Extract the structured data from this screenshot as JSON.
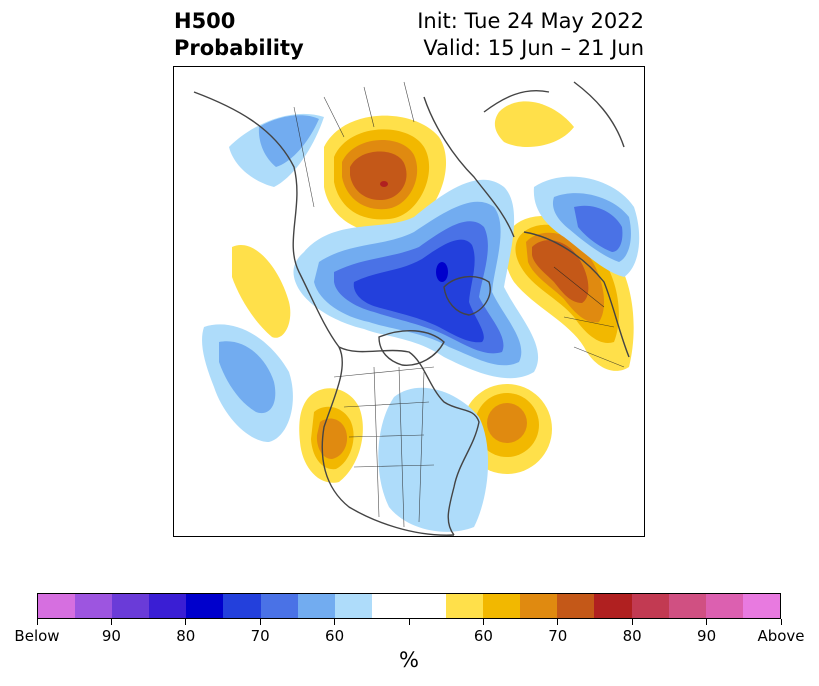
{
  "title": {
    "left_line1": "H500",
    "left_line2": "Probability",
    "right_line1": "Init: Tue 24 May 2022",
    "right_line2": "Valid: 15 Jun – 21 Jun"
  },
  "colorbar": {
    "colors": [
      "#d66fe0",
      "#9d55e0",
      "#6a3bd8",
      "#3a1ed4",
      "#0000cc",
      "#2340dc",
      "#4a72e6",
      "#72acf0",
      "#aedcfa",
      "#ffffff",
      "#ffffff",
      "#ffe04a",
      "#f2b800",
      "#e08a10",
      "#c45818",
      "#b02020",
      "#c23a52",
      "#d05082",
      "#dc60b0",
      "#e87ae0"
    ],
    "tick_labels": [
      "Below",
      "90",
      "80",
      "70",
      "60",
      "",
      "60",
      "70",
      "80",
      "90",
      "Above"
    ],
    "unit_label": "%"
  },
  "map": {
    "region": "North America / Northern Hemisphere polar view",
    "anomalies": [
      {
        "sign": "above",
        "level": "70",
        "area": "Alaska / Bering"
      },
      {
        "sign": "above",
        "level": "70",
        "area": "Scandinavia / NW Russia"
      },
      {
        "sign": "above",
        "level": "65",
        "area": "North Atlantic"
      },
      {
        "sign": "above",
        "level": "60",
        "area": "Western United States"
      },
      {
        "sign": "below",
        "level": "75",
        "area": "Arctic / Canadian Archipelago"
      },
      {
        "sign": "below",
        "level": "60",
        "area": "Eastern Pacific"
      },
      {
        "sign": "below",
        "level": "60",
        "area": "Eastern United States"
      }
    ]
  }
}
